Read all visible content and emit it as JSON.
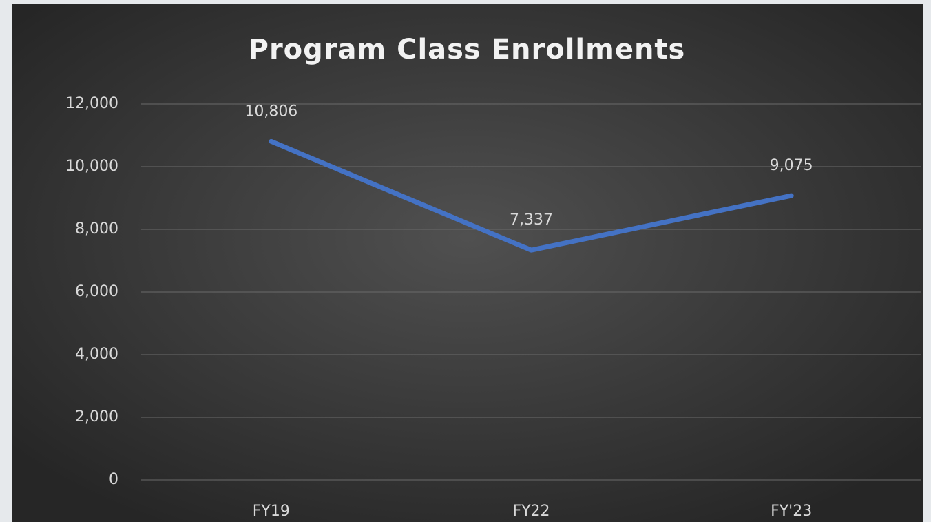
{
  "chart_data": {
    "type": "line",
    "title": "Program Class Enrollments",
    "categories": [
      "FY19",
      "FY22",
      "FY'23"
    ],
    "values": [
      10806,
      7337,
      9075
    ],
    "value_labels": [
      "10,806",
      "7,337",
      "9,075"
    ],
    "color": "#4472c4",
    "ylim": [
      0,
      12000
    ],
    "yticks": [
      0,
      {
        "value": 2000,
        "label": "2,000"
      },
      {
        "value": 4000,
        "label": "4,000"
      },
      {
        "value": 6000,
        "label": "6,000"
      },
      {
        "value": 8000,
        "label": "8,000"
      },
      {
        "value": 10000,
        "label": "10,000"
      },
      {
        "value": 12000,
        "label": "12,000"
      }
    ],
    "grid": true
  }
}
